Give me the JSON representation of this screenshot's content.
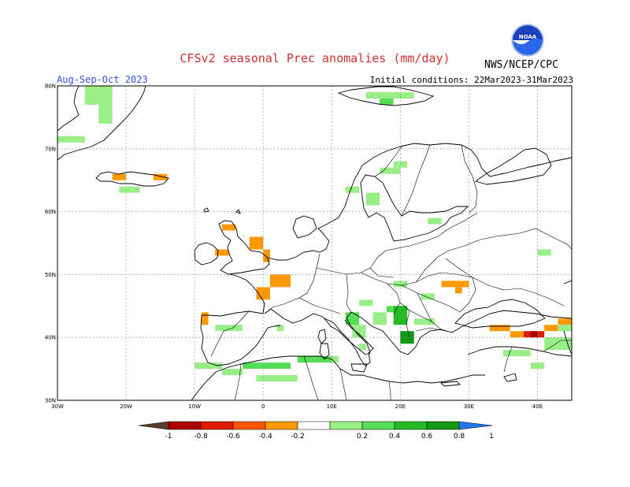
{
  "header": {
    "title": "CFSv2 seasonal Prec anomalies (mm/day)",
    "season": "Aug-Sep-Oct 2023",
    "initial_conditions": "Initial conditions: 22Mar2023-31Mar2023",
    "agency": "NWS/NCEP/CPC",
    "logo_text": "NOAA"
  },
  "map": {
    "lon_range": [
      -30,
      45
    ],
    "lat_range": [
      30,
      80
    ],
    "lat_labels": [
      "80N",
      "70N",
      "60N",
      "50N",
      "40N",
      "30N"
    ],
    "lon_labels": [
      "30W",
      "20W",
      "10W",
      "0",
      "10E",
      "20E",
      "30E",
      "40E"
    ],
    "grid": "dotted"
  },
  "colorbar": {
    "labels": [
      "-1",
      "-0.8",
      "-0.6",
      "-0.4",
      "-0.2",
      "0.2",
      "0.4",
      "0.6",
      "0.8",
      "1"
    ],
    "colors": [
      "#5a3a28",
      "#aa0000",
      "#dd1a00",
      "#ff5500",
      "#ff9900",
      "#ffffff",
      "#99ee88",
      "#55dd55",
      "#22bb22",
      "#119911",
      "#2277ee"
    ]
  },
  "anomaly_cells": [
    {
      "lon": -26,
      "lat": 77,
      "w": 4,
      "h": 3,
      "color": "#99ee88"
    },
    {
      "lon": -24,
      "lat": 74,
      "w": 2,
      "h": 3,
      "color": "#99ee88"
    },
    {
      "lon": -30,
      "lat": 71,
      "w": 4,
      "h": 1,
      "color": "#99ee88"
    },
    {
      "lon": -22,
      "lat": 65,
      "w": 2,
      "h": 1,
      "color": "#ff9900"
    },
    {
      "lon": -16,
      "lat": 65,
      "w": 2,
      "h": 1,
      "color": "#ff9900"
    },
    {
      "lon": -21,
      "lat": 63,
      "w": 3,
      "h": 1,
      "color": "#99ee88"
    },
    {
      "lon": -7,
      "lat": 53,
      "w": 2,
      "h": 1,
      "color": "#ff9900"
    },
    {
      "lon": -6,
      "lat": 57,
      "w": 2,
      "h": 1,
      "color": "#ff9900"
    },
    {
      "lon": -2,
      "lat": 54,
      "w": 2,
      "h": 2,
      "color": "#ff9900"
    },
    {
      "lon": 0,
      "lat": 52,
      "w": 1,
      "h": 2,
      "color": "#ff9900"
    },
    {
      "lon": 1,
      "lat": 48,
      "w": 3,
      "h": 2,
      "color": "#ff9900"
    },
    {
      "lon": -1,
      "lat": 46,
      "w": 2,
      "h": 2,
      "color": "#ff9900"
    },
    {
      "lon": -9,
      "lat": 42,
      "w": 1,
      "h": 2,
      "color": "#ff9900"
    },
    {
      "lon": -7,
      "lat": 41,
      "w": 4,
      "h": 1,
      "color": "#99ee88"
    },
    {
      "lon": -10,
      "lat": 35,
      "w": 4,
      "h": 1,
      "color": "#99ee88"
    },
    {
      "lon": -6,
      "lat": 34,
      "w": 3,
      "h": 1,
      "color": "#99ee88"
    },
    {
      "lon": -3,
      "lat": 35,
      "w": 7,
      "h": 1,
      "color": "#55dd55"
    },
    {
      "lon": -1,
      "lat": 33,
      "w": 6,
      "h": 1,
      "color": "#99ee88"
    },
    {
      "lon": 5,
      "lat": 36,
      "w": 6,
      "h": 1,
      "color": "#55dd55"
    },
    {
      "lon": 10,
      "lat": 36,
      "w": 1,
      "h": 1,
      "color": "#99ee88"
    },
    {
      "lon": 2,
      "lat": 41,
      "w": 1,
      "h": 1,
      "color": "#99ee88"
    },
    {
      "lon": 12,
      "lat": 42,
      "w": 2,
      "h": 2,
      "color": "#55dd55"
    },
    {
      "lon": 13,
      "lat": 40,
      "w": 2,
      "h": 2,
      "color": "#99ee88"
    },
    {
      "lon": 14,
      "lat": 38,
      "w": 1,
      "h": 1,
      "color": "#99ee88"
    },
    {
      "lon": 14,
      "lat": 45,
      "w": 2,
      "h": 1,
      "color": "#99ee88"
    },
    {
      "lon": 18,
      "lat": 44,
      "w": 3,
      "h": 1,
      "color": "#55dd55"
    },
    {
      "lon": 16,
      "lat": 42,
      "w": 2,
      "h": 2,
      "color": "#99ee88"
    },
    {
      "lon": 19,
      "lat": 42,
      "w": 2,
      "h": 3,
      "color": "#22bb22"
    },
    {
      "lon": 20,
      "lat": 39,
      "w": 2,
      "h": 2,
      "color": "#119911"
    },
    {
      "lon": 22,
      "lat": 42,
      "w": 3,
      "h": 1,
      "color": "#99ee88"
    },
    {
      "lon": 23,
      "lat": 46,
      "w": 2,
      "h": 1,
      "color": "#99ee88"
    },
    {
      "lon": 19,
      "lat": 48,
      "w": 2,
      "h": 1,
      "color": "#99ee88"
    },
    {
      "lon": 26,
      "lat": 48,
      "w": 4,
      "h": 1,
      "color": "#ff9900"
    },
    {
      "lon": 28,
      "lat": 47,
      "w": 1,
      "h": 1,
      "color": "#ff9900"
    },
    {
      "lon": 33,
      "lat": 41,
      "w": 3,
      "h": 1,
      "color": "#ff9900"
    },
    {
      "lon": 36,
      "lat": 40,
      "w": 2,
      "h": 1,
      "color": "#ff9900"
    },
    {
      "lon": 38,
      "lat": 40,
      "w": 3,
      "h": 1,
      "color": "#dd1a00"
    },
    {
      "lon": 39,
      "lat": 40,
      "w": 1,
      "h": 1,
      "color": "#aa0000"
    },
    {
      "lon": 41,
      "lat": 41,
      "w": 2,
      "h": 1,
      "color": "#ff9900"
    },
    {
      "lon": 43,
      "lat": 42,
      "w": 2,
      "h": 1,
      "color": "#ff9900"
    },
    {
      "lon": 41,
      "lat": 38,
      "w": 4,
      "h": 2,
      "color": "#99ee88"
    },
    {
      "lon": 43,
      "lat": 41,
      "w": 2,
      "h": 1,
      "color": "#99ee88"
    },
    {
      "lon": 35,
      "lat": 37,
      "w": 4,
      "h": 1,
      "color": "#99ee88"
    },
    {
      "lon": 39,
      "lat": 35,
      "w": 2,
      "h": 1,
      "color": "#99ee88"
    },
    {
      "lon": 40,
      "lat": 53,
      "w": 2,
      "h": 1,
      "color": "#99ee88"
    },
    {
      "lon": 12,
      "lat": 63,
      "w": 2,
      "h": 1,
      "color": "#99ee88"
    },
    {
      "lon": 15,
      "lat": 61,
      "w": 2,
      "h": 2,
      "color": "#99ee88"
    },
    {
      "lon": 17,
      "lat": 66,
      "w": 3,
      "h": 1,
      "color": "#99ee88"
    },
    {
      "lon": 19,
      "lat": 67,
      "w": 2,
      "h": 1,
      "color": "#99ee88"
    },
    {
      "lon": 24,
      "lat": 58,
      "w": 2,
      "h": 1,
      "color": "#99ee88"
    },
    {
      "lon": 15,
      "lat": 78,
      "w": 7,
      "h": 1,
      "color": "#99ee88"
    },
    {
      "lon": 17,
      "lat": 77,
      "w": 2,
      "h": 1,
      "color": "#55dd55"
    }
  ]
}
